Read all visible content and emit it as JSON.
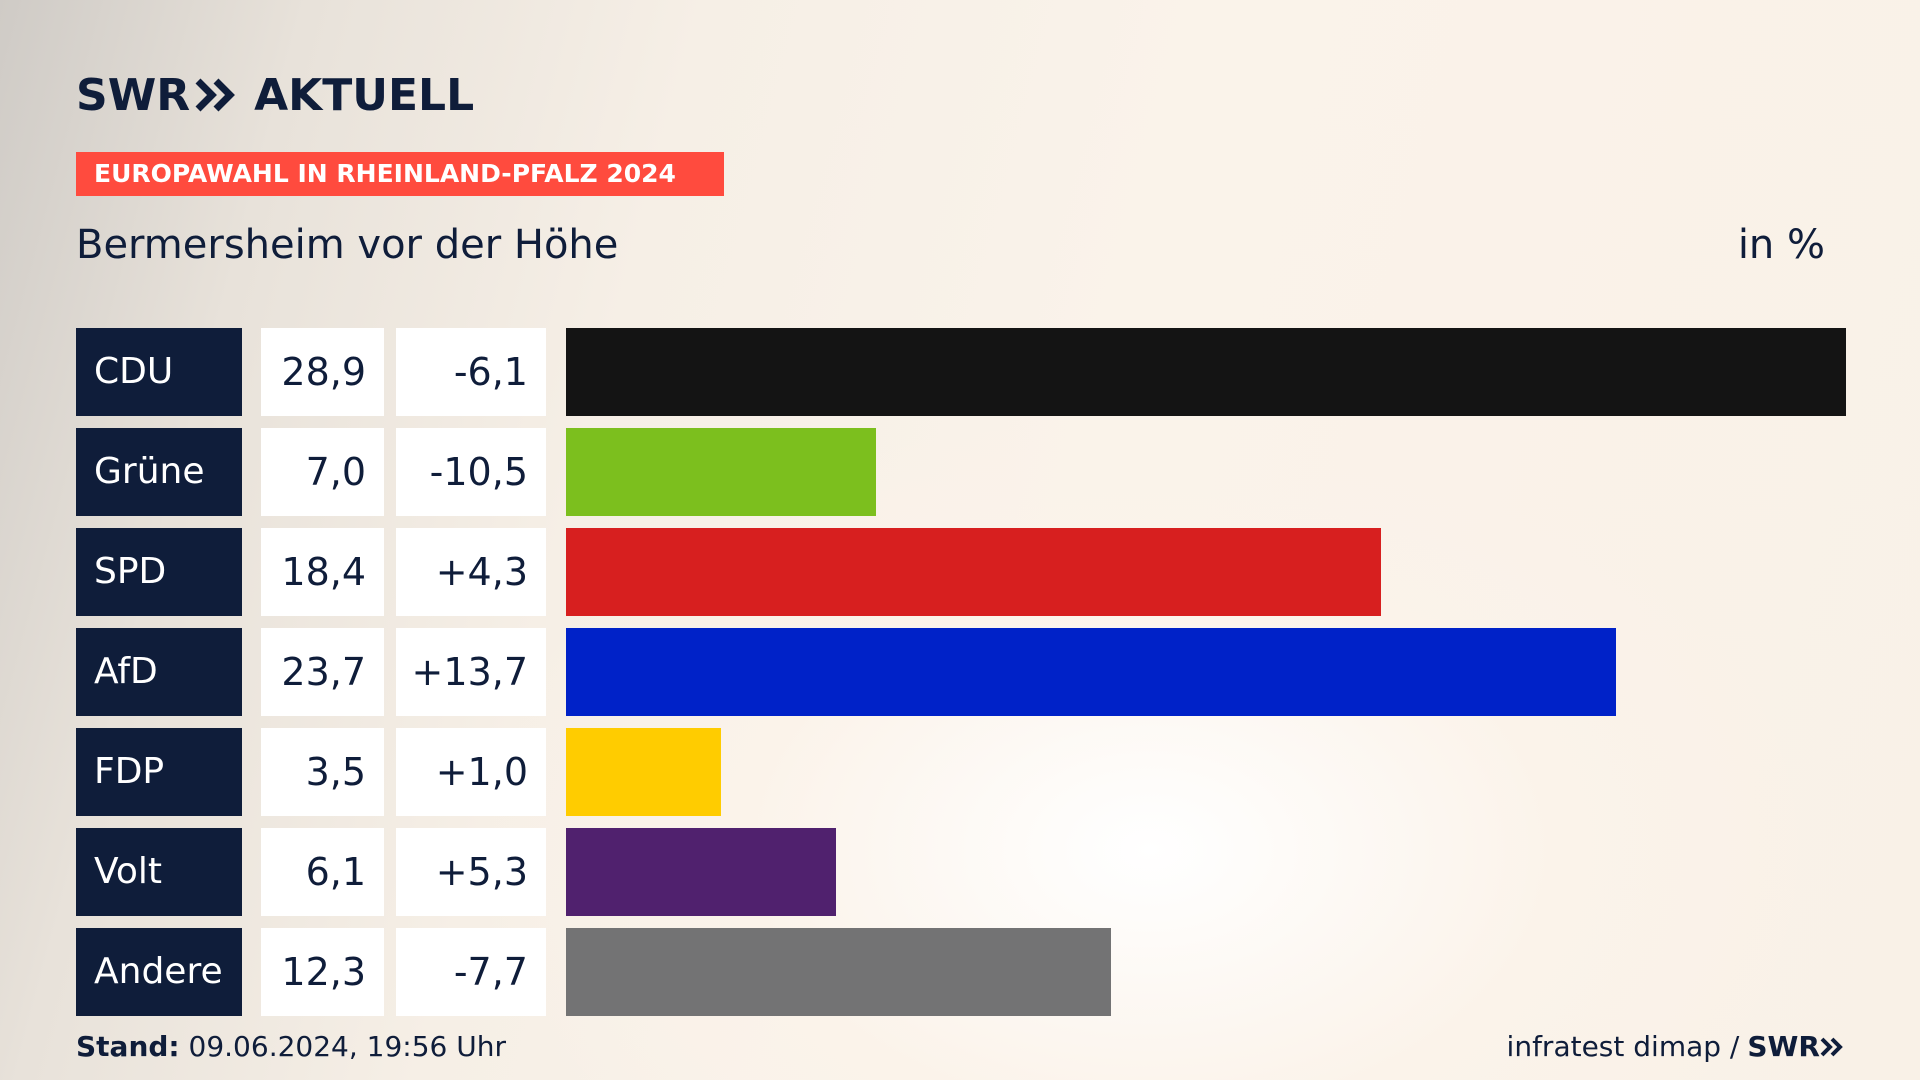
{
  "header": {
    "brand_name": "SWR",
    "brand_product": "AKTUELL",
    "banner": "EUROPAWAHL IN RHEINLAND-PFALZ 2024"
  },
  "chart_data": {
    "type": "bar",
    "title": "Bermersheim vor der Höhe",
    "unit": "in %",
    "categories": [
      "CDU",
      "Grüne",
      "SPD",
      "AfD",
      "FDP",
      "Volt",
      "Andere"
    ],
    "values": [
      28.9,
      7.0,
      18.4,
      23.7,
      3.5,
      6.1,
      12.3
    ],
    "value_labels": [
      "28,9",
      "7,0",
      "18,4",
      "23,7",
      "3,5",
      "6,1",
      "12,3"
    ],
    "changes": [
      -6.1,
      -10.5,
      4.3,
      13.7,
      1.0,
      5.3,
      -7.7
    ],
    "change_labels": [
      "-6,1",
      "-10,5",
      "+4,3",
      "+13,7",
      "+1,0",
      "+5,3",
      "-7,7"
    ],
    "colors": [
      "#141414",
      "#7cbf1e",
      "#d71f1f",
      "#0022c8",
      "#ffcc00",
      "#50216e",
      "#737374"
    ],
    "xlim": [
      0,
      28.9
    ]
  },
  "footer": {
    "stand_label": "Stand:",
    "stand_value": "09.06.2024, 19:56 Uhr",
    "source": "infratest dimap /",
    "source_logo": "SWR"
  }
}
